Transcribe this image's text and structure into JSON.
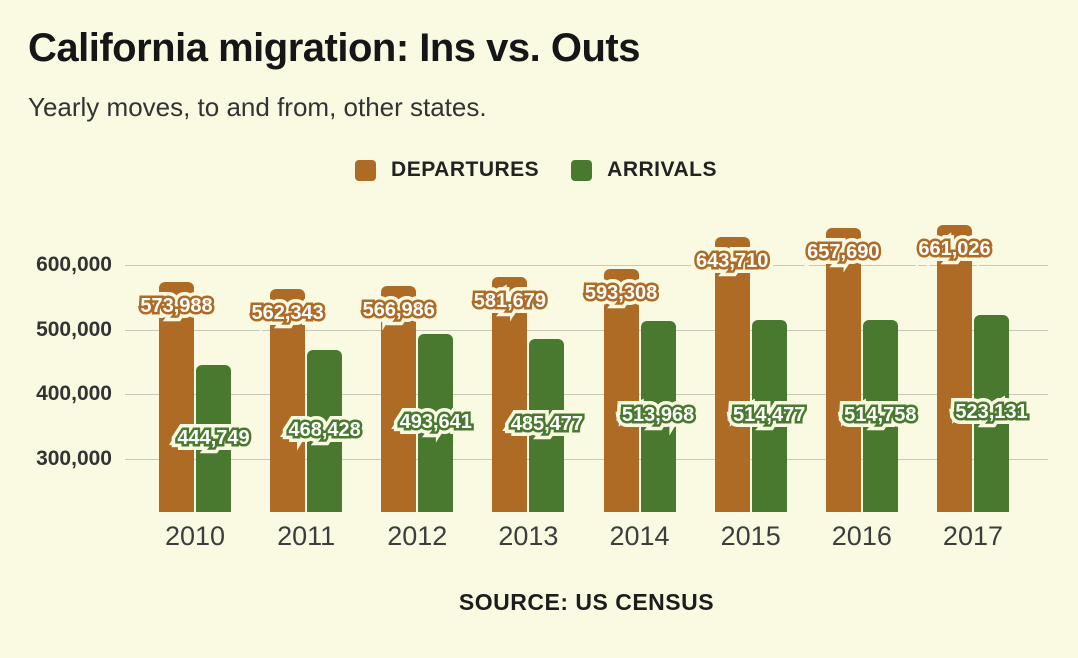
{
  "header": {
    "title": "California migration: Ins vs. Outs",
    "subtitle": "Yearly moves, to and from, other states."
  },
  "legend": {
    "items": [
      {
        "label": "DEPARTURES",
        "color": "#ad6b26"
      },
      {
        "label": "ARRIVALS",
        "color": "#48792e"
      }
    ]
  },
  "footer": {
    "source": "SOURCE: US CENSUS"
  },
  "colors": {
    "background": "#fafae3",
    "grid": "#c9c9ba",
    "departures": "#ad6b26",
    "arrivals": "#48792e",
    "label_text": "#ffffff"
  },
  "chart_data": {
    "type": "bar",
    "title": "California migration: Ins vs. Outs",
    "subtitle": "Yearly moves, to and from, other states.",
    "source": "SOURCE: US CENSUS",
    "categories": [
      "2010",
      "2011",
      "2012",
      "2013",
      "2014",
      "2015",
      "2016",
      "2017"
    ],
    "series": [
      {
        "name": "DEPARTURES",
        "color": "#ad6b26",
        "values": [
          573988,
          562343,
          566986,
          581679,
          593308,
          643710,
          657690,
          661026
        ],
        "labels": [
          "573,988",
          "562,343",
          "566,986",
          "581,679",
          "593,308",
          "643,710",
          "657,690",
          "661,026"
        ]
      },
      {
        "name": "ARRIVALS",
        "color": "#48792e",
        "values": [
          444749,
          468428,
          493641,
          485477,
          513968,
          514477,
          514758,
          523131
        ],
        "labels": [
          "444,749",
          "468,428",
          "493,641",
          "485,477",
          "513,968",
          "514,477",
          "514,758",
          "523,131"
        ]
      }
    ],
    "xlabel": "",
    "ylabel": "",
    "yticks": [
      300000,
      400000,
      500000,
      600000
    ],
    "ytick_labels": [
      "300,000",
      "400,000",
      "500,000",
      "600,000"
    ],
    "ylim": [
      218000,
      685000
    ],
    "grid": true,
    "legend_position": "top",
    "value_labels": true
  }
}
